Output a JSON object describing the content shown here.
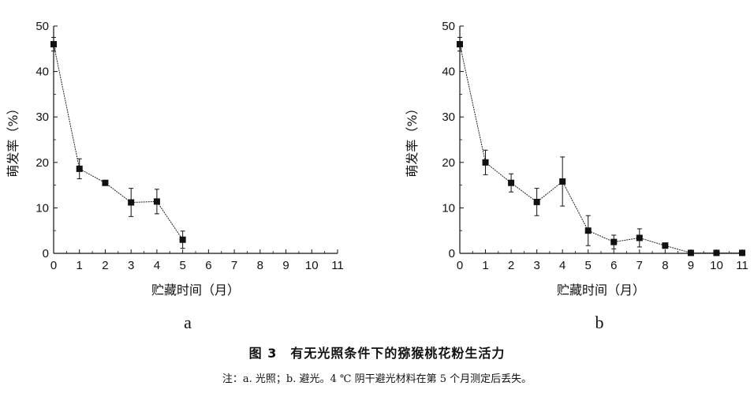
{
  "figure": {
    "title": "图 3　有无光照条件下的猕猴桃花粉生活力",
    "note": "注：a. 光照；b. 避光。4 ℃ 阴干避光材料在第 5 个月测定后丢失。"
  },
  "chart_data": [
    {
      "panel_label": "a",
      "type": "line",
      "xlabel": "贮藏时间（月）",
      "ylabel": "萌发率（%）",
      "xlim": [
        0,
        11
      ],
      "ylim": [
        0,
        50
      ],
      "x_ticks": [
        0,
        1,
        2,
        3,
        4,
        5,
        6,
        7,
        8,
        9,
        10,
        11
      ],
      "y_ticks": [
        0,
        10,
        20,
        30,
        40,
        50
      ],
      "grid": false,
      "series": [
        {
          "x": [
            0,
            1,
            2,
            3,
            4,
            5
          ],
          "values": [
            46.0,
            18.6,
            15.5,
            11.2,
            11.4,
            3.0
          ],
          "error": [
            1.5,
            2.2,
            0.4,
            3.1,
            2.7,
            1.9
          ]
        }
      ]
    },
    {
      "panel_label": "b",
      "type": "line",
      "xlabel": "贮藏时间（月）",
      "ylabel": "萌发率（%）",
      "xlim": [
        0,
        11
      ],
      "ylim": [
        0,
        50
      ],
      "x_ticks": [
        0,
        1,
        2,
        3,
        4,
        5,
        6,
        7,
        8,
        9,
        10,
        11
      ],
      "y_ticks": [
        0,
        10,
        20,
        30,
        40,
        50
      ],
      "grid": false,
      "series": [
        {
          "x": [
            0,
            1,
            2,
            3,
            4,
            5,
            6,
            7,
            8,
            9,
            10,
            11
          ],
          "values": [
            46.0,
            20.0,
            15.5,
            11.3,
            15.8,
            5.0,
            2.5,
            3.4,
            1.7,
            0.1,
            0.1,
            0.1
          ],
          "error": [
            1.5,
            2.7,
            2.0,
            3.0,
            5.4,
            3.3,
            1.5,
            2.0,
            0.6,
            0.2,
            0.2,
            0.2
          ]
        }
      ]
    }
  ]
}
